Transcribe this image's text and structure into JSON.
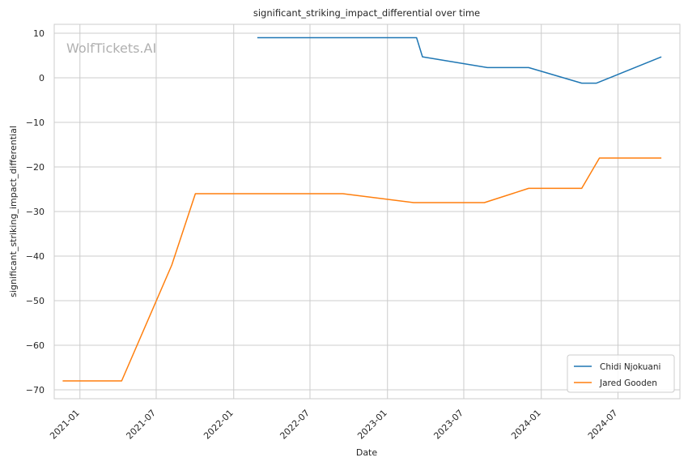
{
  "chart_data": {
    "type": "line",
    "title": "significant_striking_impact_differential over time",
    "xlabel": "Date",
    "ylabel": "significant_striking_impact_differential",
    "watermark": "WolfTickets.AI",
    "x_ticks": [
      "2021-01",
      "2021-07",
      "2022-01",
      "2022-07",
      "2023-01",
      "2023-07",
      "2024-01",
      "2024-07"
    ],
    "y_ticks": [
      10,
      0,
      -10,
      -20,
      -30,
      -40,
      -50,
      -60,
      -70
    ],
    "y_tick_labels": [
      "10",
      "0",
      "−10",
      "−20",
      "−30",
      "−40",
      "−50",
      "−60",
      "−70"
    ],
    "xlim": [
      "2020-11-01",
      "2024-11-25"
    ],
    "ylim": [
      -72,
      12
    ],
    "grid": true,
    "legend_position": "lower-right",
    "series": [
      {
        "name": "Chidi Njokuani",
        "color": "#1f77b4",
        "points": [
          [
            "2022-02-26",
            9
          ],
          [
            "2023-03-11",
            9
          ],
          [
            "2023-03-25",
            4.7
          ],
          [
            "2023-08-26",
            2.3
          ],
          [
            "2023-12-02",
            2.3
          ],
          [
            "2024-04-06",
            -1.2
          ],
          [
            "2024-05-11",
            -1.2
          ],
          [
            "2024-10-12",
            4.7
          ]
        ]
      },
      {
        "name": "Jared Gooden",
        "color": "#ff7f0e",
        "points": [
          [
            "2020-11-21",
            -68
          ],
          [
            "2021-04-10",
            -68
          ],
          [
            "2021-08-07",
            -42
          ],
          [
            "2021-10-02",
            -26
          ],
          [
            "2022-09-17",
            -26
          ],
          [
            "2023-03-04",
            -28
          ],
          [
            "2023-08-19",
            -28
          ],
          [
            "2023-12-02",
            -24.8
          ],
          [
            "2024-04-06",
            -24.8
          ],
          [
            "2024-05-18",
            -18
          ],
          [
            "2024-10-12",
            -18
          ]
        ]
      }
    ]
  }
}
